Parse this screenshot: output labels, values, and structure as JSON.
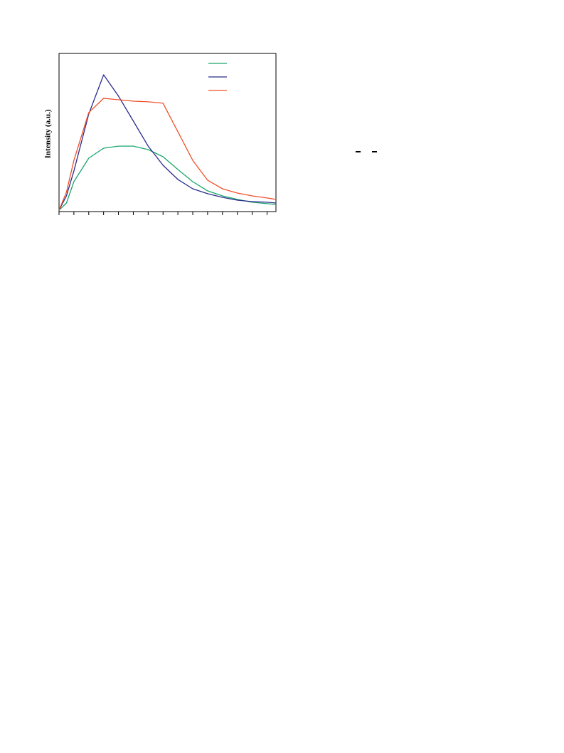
{
  "chart_data": {
    "type": "line",
    "y_label": "Intensity (a.u.)",
    "x": [
      0,
      0.5,
      1,
      2,
      3,
      4,
      5,
      6,
      7,
      8,
      9,
      10,
      11,
      12,
      13,
      14,
      14.6
    ],
    "series": [
      {
        "color": "#1aa56b",
        "values": [
          0.9,
          5.4,
          18.9,
          33.8,
          40.1,
          41.4,
          41.4,
          39.2,
          34.7,
          26.6,
          18.9,
          13.1,
          9.9,
          7.7,
          5.9,
          5.0,
          4.5
        ]
      },
      {
        "color": "#2a2a8c",
        "values": [
          0.9,
          9.9,
          25.7,
          61.7,
          86.5,
          73.0,
          57.2,
          41.4,
          29.3,
          20.3,
          14.4,
          11.3,
          9.0,
          7.2,
          6.3,
          5.9,
          5.4
        ]
      },
      {
        "color": "#f0502a",
        "values": [
          0.9,
          12.2,
          32.4,
          62.6,
          71.6,
          70.7,
          69.8,
          69.4,
          68.5,
          50.5,
          32.4,
          19.8,
          14.4,
          11.7,
          9.9,
          8.6,
          7.7
        ]
      }
    ],
    "xlim": [
      0,
      14.6
    ],
    "ylim": [
      0,
      100
    ],
    "xticks": [
      0,
      1,
      2,
      3,
      4,
      5,
      6,
      7,
      8,
      9,
      10,
      11,
      12,
      13,
      14
    ]
  }
}
